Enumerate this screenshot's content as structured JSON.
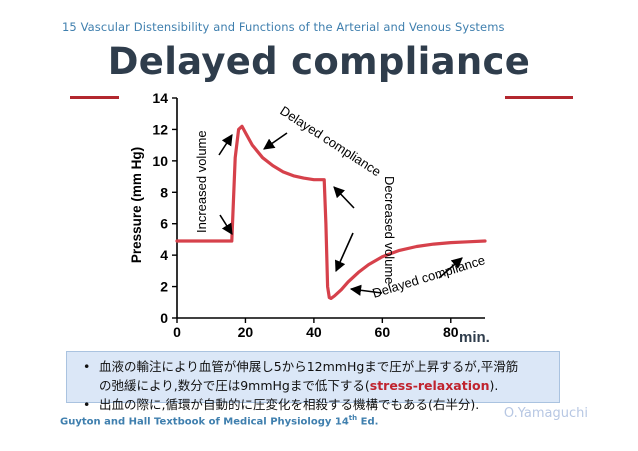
{
  "header": {
    "text": "15  Vascular Distensibility and Functions of the Arterial and Venous Systems"
  },
  "title": "Delayed compliance",
  "colors": {
    "accent": "#b3272e",
    "header_text": "#3f7fae",
    "curve": "#d6414b",
    "note_bg": "#dbe7f7"
  },
  "chart_data": {
    "type": "line",
    "ylabel": "Pressure (mm Hg)",
    "x_unit": "min.",
    "xlim": [
      0,
      90
    ],
    "ylim": [
      0,
      14
    ],
    "x_ticks": [
      "0",
      "20",
      "40",
      "60",
      "80"
    ],
    "y_ticks": [
      "0",
      "2",
      "4",
      "6",
      "8",
      "10",
      "12",
      "14"
    ],
    "grid": false,
    "series": [
      {
        "x": [
          0,
          10,
          16,
          17,
          18,
          19,
          20,
          22,
          25,
          28,
          31,
          34,
          37,
          40,
          43,
          43.5,
          44,
          44.5,
          45,
          46,
          48,
          50,
          53,
          56,
          60,
          65,
          70,
          75,
          80,
          85,
          90
        ],
        "y": [
          4.9,
          4.9,
          4.9,
          10.2,
          12.0,
          12.2,
          11.8,
          11.0,
          10.2,
          9.7,
          9.3,
          9.05,
          8.9,
          8.8,
          8.8,
          6.0,
          2.0,
          1.3,
          1.25,
          1.4,
          1.8,
          2.3,
          2.9,
          3.4,
          3.9,
          4.3,
          4.55,
          4.7,
          4.8,
          4.85,
          4.9
        ]
      }
    ],
    "annotations": [
      {
        "text": "Increased volume"
      },
      {
        "text": "Delayed compliance"
      },
      {
        "text": "Decreased volume"
      },
      {
        "text": "Delayed compliance"
      }
    ]
  },
  "note": {
    "line1": "血液の輸注により血管が伸展し5から12mmHgまで圧が上昇するが,平滑筋",
    "line2_pre": "の弛緩により,数分で圧は9mmHgまで低下する(",
    "line2_accent": "stress-relaxation",
    "line2_post": ").",
    "line3": "出血の際に,循環が自動的に圧変化を相殺する機構でもある(右半分).",
    "bullet": "•"
  },
  "footer": {
    "reference": "Guyton and Hall Textbook of Medical Physiology 14",
    "reference_sup": "th",
    "reference_post": " Ed.",
    "author": "O.Yamaguchi"
  }
}
